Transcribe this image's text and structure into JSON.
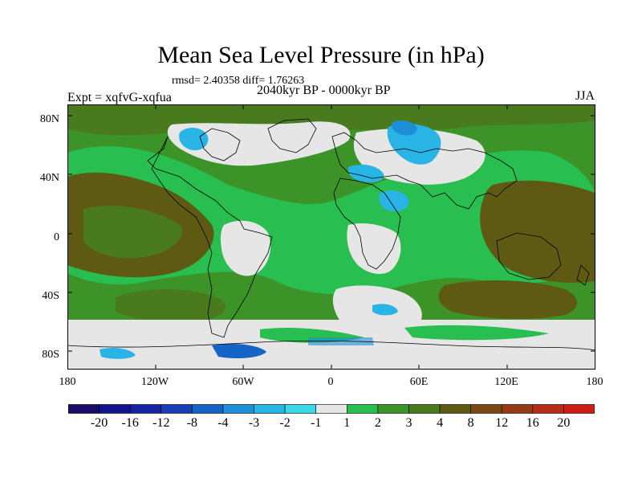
{
  "title": "Mean Sea Level Pressure (in hPa)",
  "stats": "rmsd= 2.40358 diff= 1.76263",
  "experiment": "Expt = xqfvG-xqfua",
  "period": "2040kyr BP - 0000kyr BP",
  "season": "JJA",
  "lat_labels": [
    "80N",
    "40N",
    "0",
    "40S",
    "80S"
  ],
  "lon_labels": [
    "180",
    "120W",
    "60W",
    "0",
    "60E",
    "120E",
    "180"
  ],
  "colorbar": {
    "colors": [
      "#1a0a6a",
      "#14148c",
      "#1424a0",
      "#1a3cb4",
      "#1464c8",
      "#1e8ed6",
      "#28b4e4",
      "#3cd8e8",
      "#e6e6e6",
      "#28be50",
      "#3c9428",
      "#4a7a1e",
      "#5e5a14",
      "#7a4a14",
      "#963c14",
      "#b42d14",
      "#cc1e14"
    ],
    "labels": [
      "-20",
      "-16",
      "-12",
      "-8",
      "-4",
      "-3",
      "-2",
      "-1",
      "1",
      "2",
      "3",
      "4",
      "8",
      "12",
      "16",
      "20"
    ]
  }
}
